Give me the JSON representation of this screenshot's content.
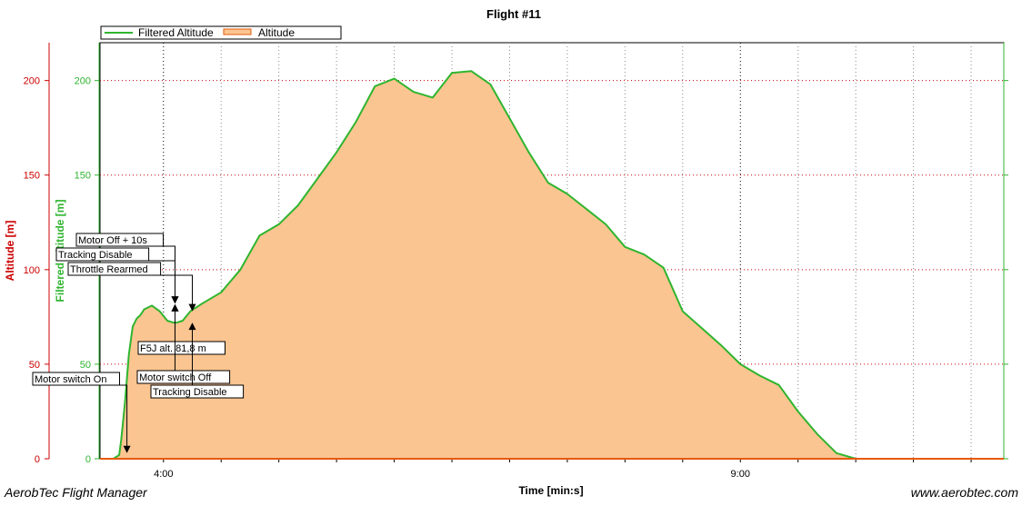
{
  "app": {
    "footer_left": "AerobTec Flight Manager",
    "footer_right": "www.aerobtec.com"
  },
  "colors": {
    "filtered_line": "#2fb52f",
    "altitude_fill": "#fbc591",
    "altitude_line": "#e65a0a",
    "grid": "#cc0000",
    "axis_altitude": "#cc0000",
    "axis_filtered": "#2fb52f"
  },
  "chart_data": {
    "type": "area",
    "title": "Flight #11",
    "xlabel": "Time [min:s]",
    "ylabel_left": "Altitude [m]",
    "ylabel_right": "Filtered Altitude [m]",
    "xlim": [
      "3:27",
      "11:17"
    ],
    "ylim": [
      0,
      220
    ],
    "x_ticks": [
      "4:00",
      "9:00"
    ],
    "y_ticks": [
      0,
      50,
      100,
      150,
      200
    ],
    "grid": true,
    "legend_position": "top-left",
    "series": [
      {
        "name": "Filtered Altitude",
        "x": [
          "3:27",
          "3:34",
          "3:37",
          "3:38",
          "3:40",
          "3:42",
          "3:44",
          "3:46",
          "3:48",
          "3:50",
          "3:54",
          "3:58",
          "4:02",
          "4:05",
          "4:07",
          "4:10",
          "4:14",
          "4:20",
          "4:30",
          "4:40",
          "4:50",
          "5:00",
          "5:10",
          "5:20",
          "5:30",
          "5:40",
          "5:50",
          "6:00",
          "6:10",
          "6:20",
          "6:30",
          "6:40",
          "6:50",
          "7:00",
          "7:10",
          "7:20",
          "7:30",
          "7:40",
          "7:50",
          "8:00",
          "8:10",
          "8:20",
          "8:30",
          "8:40",
          "8:50",
          "9:00",
          "9:10",
          "9:20",
          "9:30",
          "9:40",
          "9:50",
          "10:00",
          "10:10",
          "10:20",
          "10:30",
          "10:40",
          "10:50",
          "11:00",
          "11:05",
          "11:10",
          "11:15",
          "11:17"
        ],
        "values": [
          0,
          0,
          2,
          10,
          30,
          55,
          70,
          74,
          76,
          79,
          81,
          78,
          73,
          72,
          72,
          73,
          78,
          82,
          88,
          100,
          118,
          124,
          134,
          148,
          162,
          178,
          197,
          201,
          194,
          191,
          204,
          205,
          198,
          180,
          162,
          146,
          140,
          132,
          124,
          112,
          108,
          101,
          78,
          69,
          60,
          50,
          44,
          39,
          25,
          13,
          3,
          0,
          0,
          0,
          0,
          0,
          0,
          0,
          0,
          0,
          0,
          0
        ]
      },
      {
        "name": "Altitude",
        "values_note": ""
      }
    ],
    "annotations": [
      {
        "text": "Motor switch On",
        "time": "3:41",
        "value": 3,
        "dir": "down"
      },
      {
        "text": "Motor Off + 10s",
        "time": "4:06",
        "value": 82,
        "dir": "down"
      },
      {
        "text": "Tracking Disable",
        "time": "4:06",
        "value": 82,
        "dir": "down"
      },
      {
        "text": "Throttle Rearmed",
        "time": "4:15",
        "value": 78,
        "dir": "down"
      },
      {
        "text": "F5J alt. 81,8 m",
        "time": "4:06",
        "value": 81.8,
        "dir": "up"
      },
      {
        "text": "Motor switch Off",
        "time": "4:06",
        "value": 81.8,
        "dir": "up"
      },
      {
        "text": "Tracking Disable",
        "time": "4:15",
        "value": 72,
        "dir": "up"
      }
    ]
  }
}
